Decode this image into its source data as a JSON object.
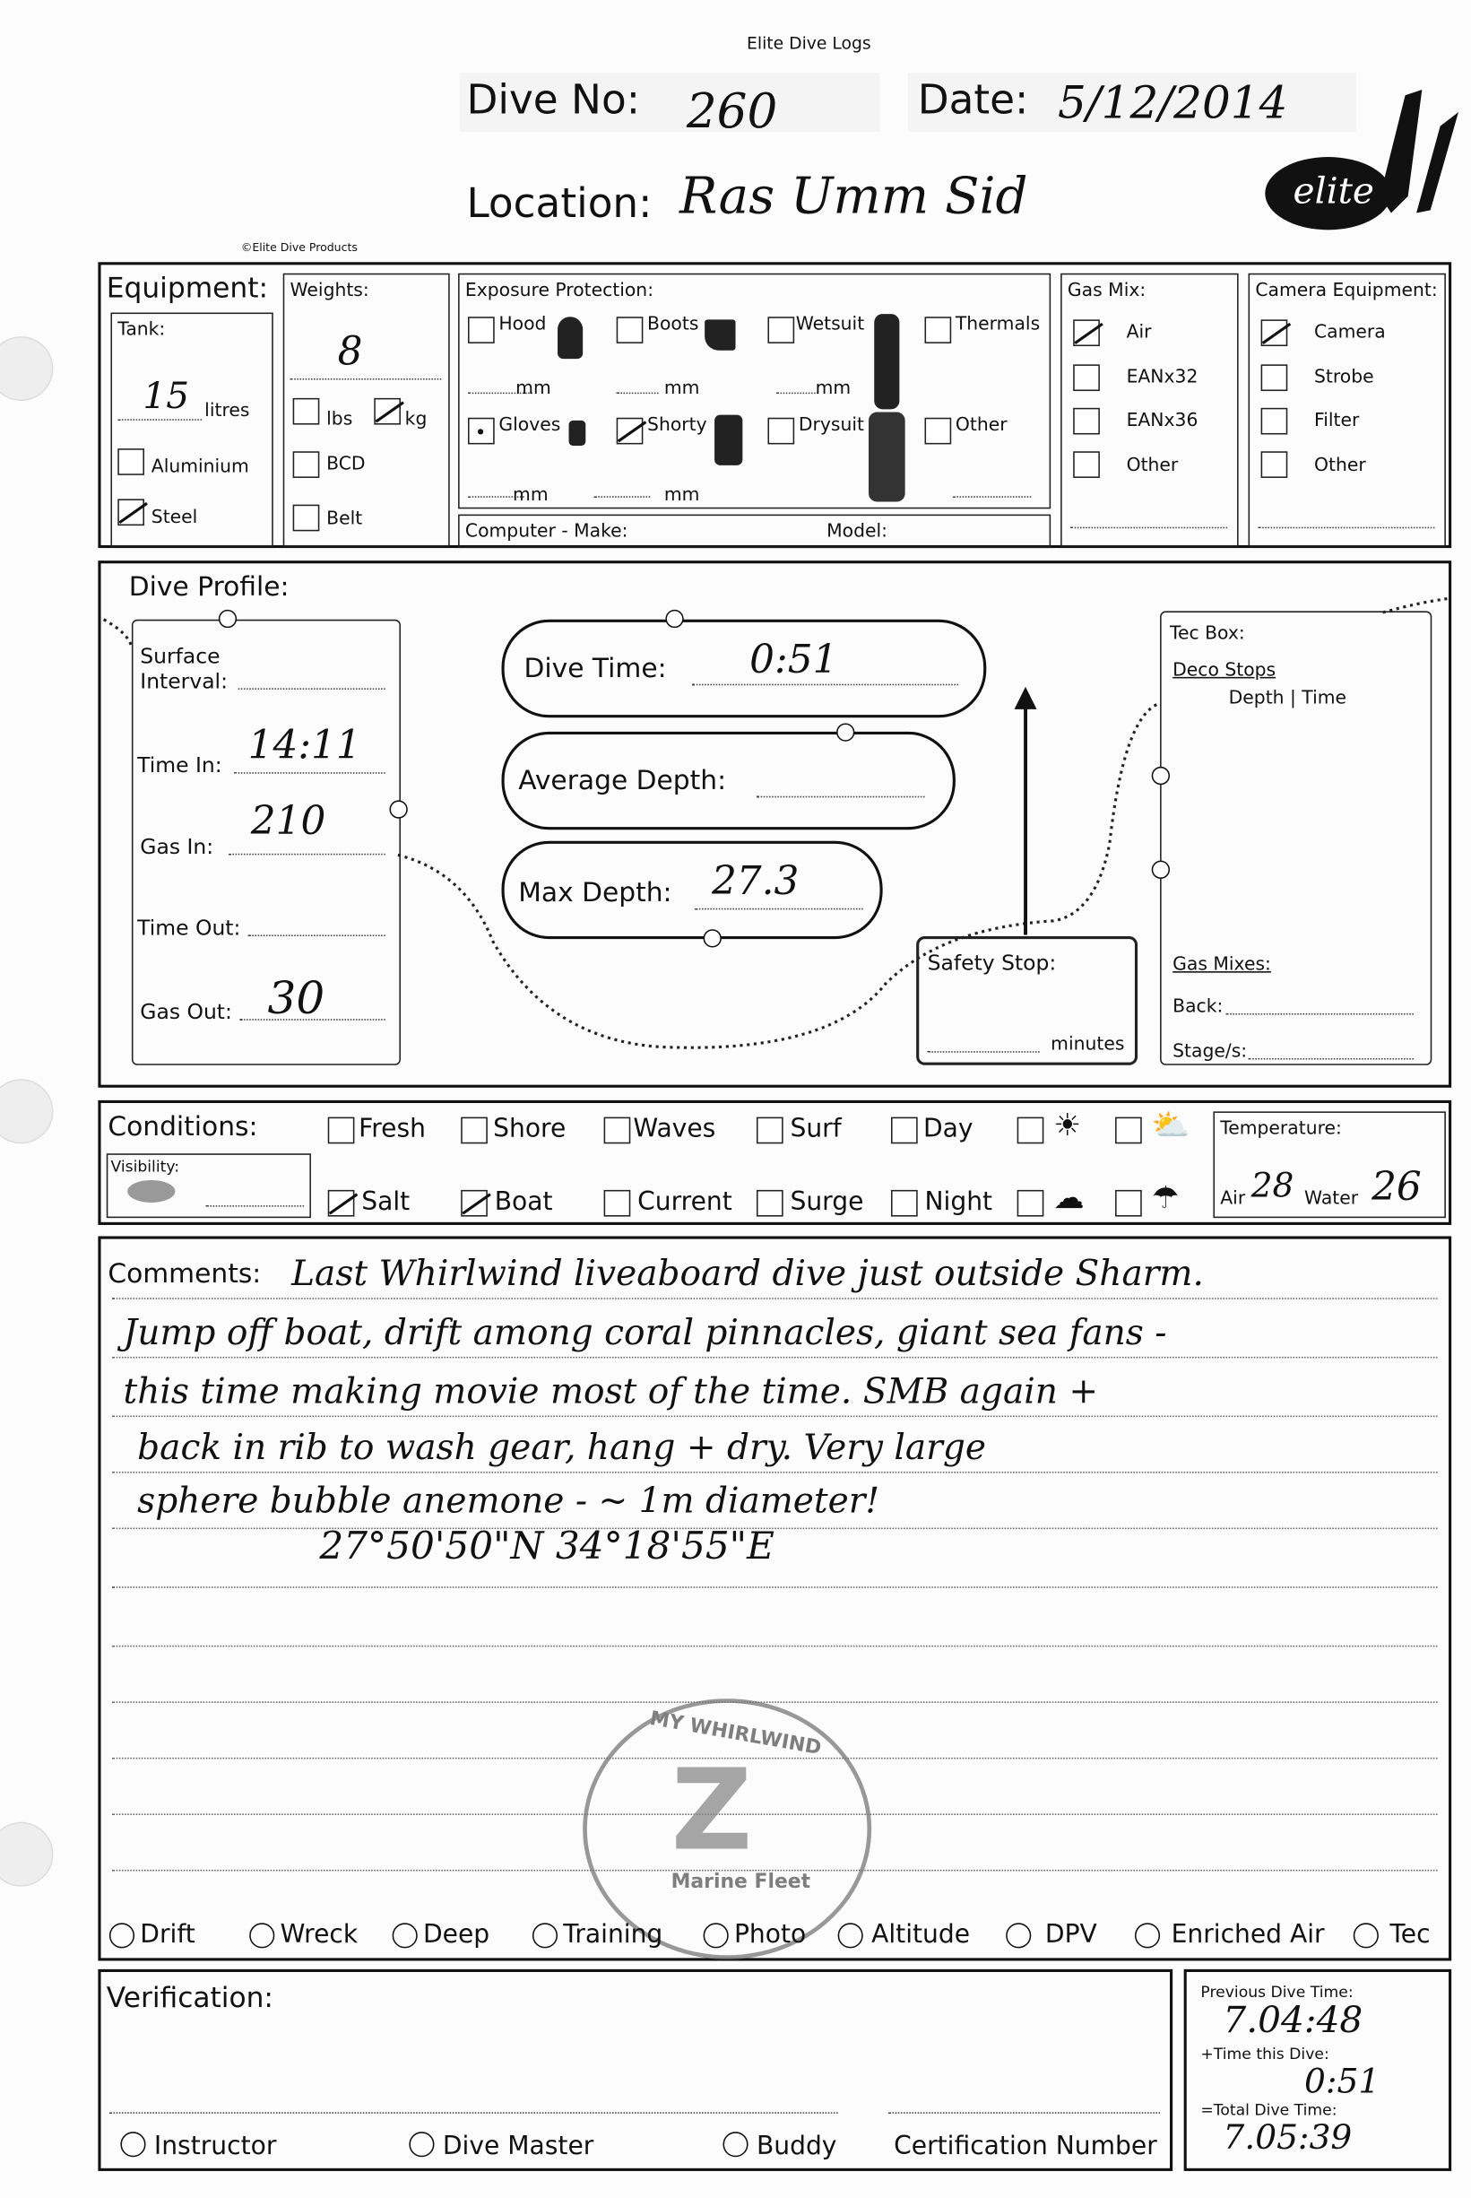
{
  "header": {
    "brand": "Elite Dive Logs",
    "copyright": "©Elite Dive Products",
    "logo_text": "elite",
    "dive_no_label": "Dive No:",
    "dive_no": "260",
    "date_label": "Date:",
    "date": "5/12/2014",
    "location_label": "Location:",
    "location": "Ras Umm Sid"
  },
  "equipment": {
    "title": "Equipment:",
    "tank": {
      "label": "Tank:",
      "value": "15",
      "unit": "litres",
      "aluminium": "Aluminium",
      "steel": "Steel"
    },
    "weights": {
      "label": "Weights:",
      "value": "8",
      "lbs": "lbs",
      "kg": "kg",
      "bcd": "BCD",
      "belt": "Belt"
    },
    "exposure": {
      "label": "Exposure Protection:",
      "hood": "Hood",
      "boots": "Boots",
      "wetsuit": "Wetsuit",
      "thermals": "Thermals",
      "gloves": "Gloves",
      "shorty": "Shorty",
      "drysuit": "Drysuit",
      "other": "Other",
      "mm": "mm"
    },
    "computer": {
      "make": "Computer - Make:",
      "model": "Model:"
    },
    "gas_mix": {
      "label": "Gas Mix:",
      "items": [
        "Air",
        "EANx32",
        "EANx36",
        "Other"
      ],
      "checked": [
        "Air"
      ]
    },
    "camera": {
      "label": "Camera Equipment:",
      "items": [
        "Camera",
        "Strobe",
        "Filter",
        "Other"
      ],
      "checked": [
        "Camera"
      ]
    }
  },
  "profile": {
    "title": "Dive Profile:",
    "surface_interval": "Surface Interval:",
    "time_in_label": "Time In:",
    "time_in": "14:11",
    "gas_in_label": "Gas In:",
    "gas_in": "210",
    "time_out_label": "Time Out:",
    "gas_out_label": "Gas Out:",
    "gas_out": "30",
    "dive_time_label": "Dive Time:",
    "dive_time": "0:51",
    "avg_depth_label": "Average Depth:",
    "max_depth_label": "Max Depth:",
    "max_depth": "27.3",
    "safety_stop": "Safety Stop:",
    "minutes": "minutes",
    "tec": {
      "label": "Tec Box:",
      "deco": "Deco Stops",
      "depth_time": "Depth |  Time",
      "gas_mixes": "Gas Mixes:",
      "back": "Back:",
      "stages": "Stage/s:"
    }
  },
  "conditions": {
    "title": "Conditions:",
    "visibility": "Visibility:",
    "row1": [
      "Fresh",
      "Shore",
      "Waves",
      "Surf",
      "Day"
    ],
    "row2": [
      "Salt",
      "Boat",
      "Current",
      "Surge",
      "Night"
    ],
    "checked": [
      "Salt",
      "Boat"
    ],
    "weather_icons": [
      "sun-icon",
      "sun-cloud-icon",
      "cloud-icon",
      "rain-cloud-icon"
    ],
    "temperature": "Temperature:",
    "air_label": "Air",
    "air": "28",
    "water_label": "Water",
    "water": "26"
  },
  "comments": {
    "label": "Comments:",
    "lines": [
      "Last Whirlwind liveaboard dive just outside Sharm.",
      "Jump off boat, drift among coral pinnacles, giant sea fans -",
      "this time making movie most of the time. SMB again +",
      "back in rib to wash gear, hang + dry. Very large",
      "sphere bubble anemone - ~ 1m diameter!",
      "27°50'50\"N  34°18'55\"E"
    ],
    "stamp_top": "MY WHIRLWIND",
    "stamp_mid": "Marine Fleet"
  },
  "dive_types": [
    "Drift",
    "Wreck",
    "Deep",
    "Training",
    "Photo",
    "Altitude",
    "DPV",
    "Enriched Air",
    "Tec"
  ],
  "verification": {
    "title": "Verification:",
    "instructor": "Instructor",
    "dive_master": "Dive Master",
    "buddy": "Buddy",
    "cert": "Certification Number"
  },
  "totals": {
    "previous_label": "Previous Dive Time:",
    "previous": "7.04:48",
    "this_label": "+Time this Dive:",
    "this": "0:51",
    "total_label": "=Total Dive Time:",
    "total": "7.05:39"
  }
}
